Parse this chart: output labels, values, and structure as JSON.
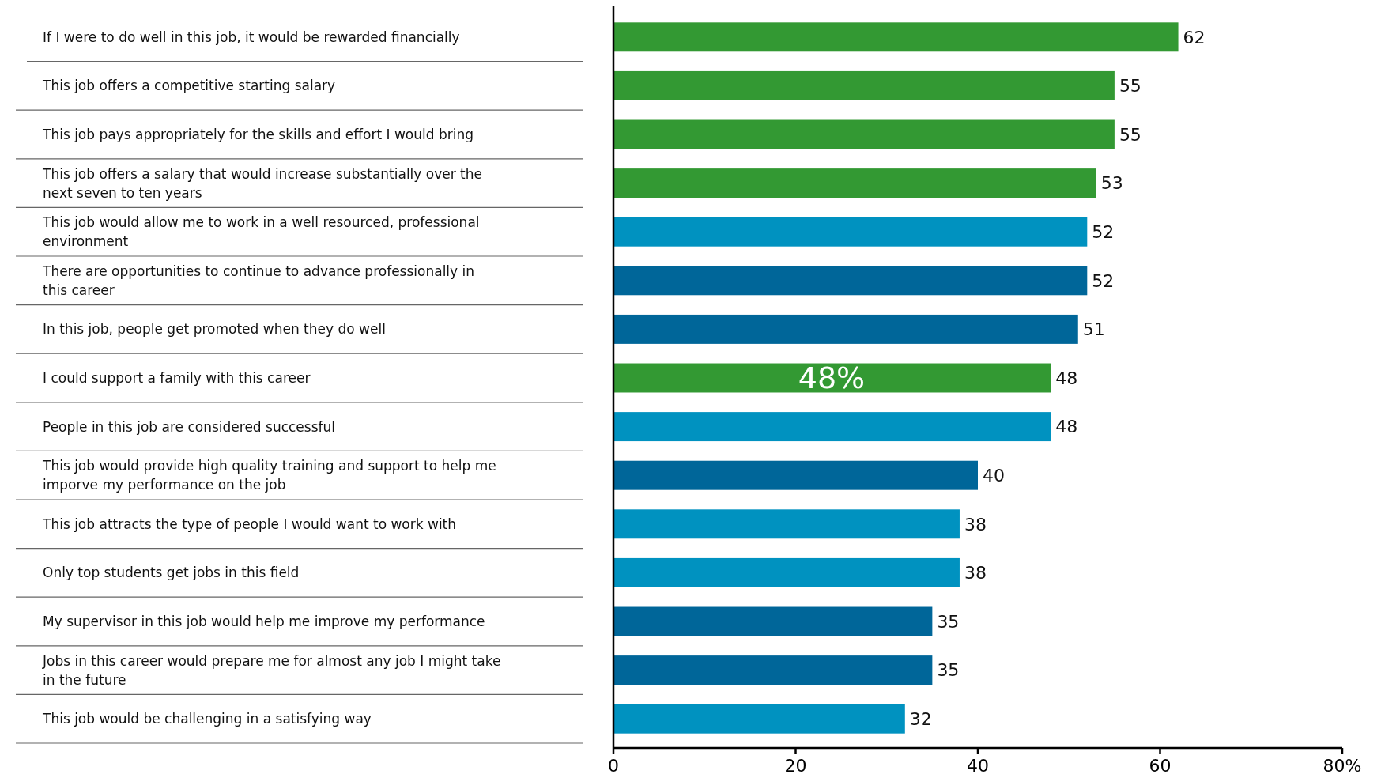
{
  "chart_data": {
    "type": "bar",
    "orientation": "horizontal",
    "categories": [
      "If I were to do well in this job, it would be rewarded financially",
      "This job offers a competitive starting salary",
      "This job pays appropriately for the skills and effort I would bring",
      "This job offers a salary that would increase substantially over the next seven to ten years",
      "This job would allow me to work in a well resourced, professional environment",
      "There are opportunities to continue to advance professionally in this career",
      "In this job, people get promoted when they do well",
      "I could support a family with this career",
      "People in this job are considered successful",
      "This job would provide high quality training and support to help me imporve my performance on the job",
      "This job attracts the type of people I would want to work with",
      "Only top students get jobs in this field",
      "My supervisor in this job would help me improve my performance",
      "Jobs in this career would prepare me for almost any job I might take in the future",
      "This job would be challenging in a satisfying way"
    ],
    "values": [
      62,
      55,
      55,
      53,
      52,
      52,
      51,
      48,
      48,
      40,
      38,
      38,
      35,
      35,
      32
    ],
    "colors": [
      "#339933",
      "#339933",
      "#339933",
      "#339933",
      "#0092c0",
      "#006699",
      "#006699",
      "#339933",
      "#0092c0",
      "#006699",
      "#0092c0",
      "#0092c0",
      "#006699",
      "#006699",
      "#0092c0"
    ],
    "xlim": [
      0,
      80
    ],
    "xticks": [
      0,
      20,
      40,
      60,
      {
        "value": 80,
        "label": "80%"
      }
    ],
    "data_labels": true,
    "annotations": [
      "48%"
    ]
  }
}
